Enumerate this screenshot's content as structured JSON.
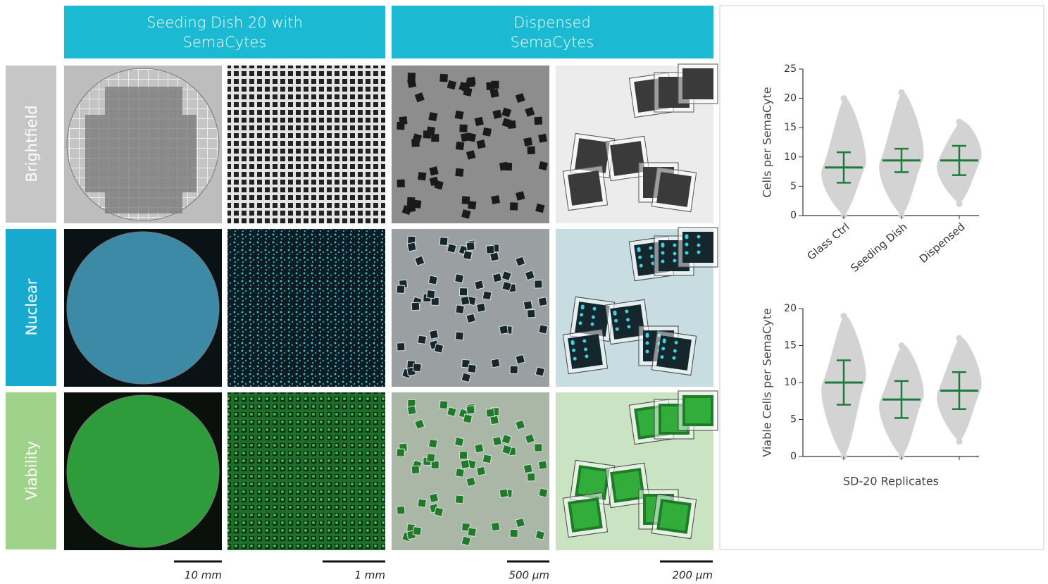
{
  "headers": [
    {
      "lines": [
        "Seeding Dish 20 with",
        "SemaCytes"
      ]
    },
    {
      "lines": [
        "Dispensed",
        "SemaCytes"
      ]
    }
  ],
  "rows": [
    "Brightfield",
    "Nuclear",
    "Viability"
  ],
  "scale_bars": [
    "10 mm",
    "1 mm",
    "500 µm",
    "200 µm"
  ],
  "chart_data": [
    {
      "type": "dot",
      "ylabel": "Cells per SemaCyte",
      "categories": [
        "Glass Ctrl",
        "Seeding Dish",
        "Dispensed"
      ],
      "values": [
        8.2,
        9.4,
        9.4
      ],
      "errors": [
        2.6,
        2.0,
        2.5
      ],
      "min": [
        0,
        0,
        2
      ],
      "max": [
        20,
        21,
        16
      ],
      "color": "#1e7b3c",
      "dot_color": "#d3d3d3",
      "ylim": [
        0,
        25
      ],
      "yticks": [
        0,
        5,
        10,
        15,
        20,
        25
      ]
    },
    {
      "type": "dot",
      "ylabel": "Viable Cells per SemaCyte",
      "xlabel": "SD-20 Replicates",
      "categories": [
        null,
        null,
        null
      ],
      "values": [
        10.0,
        7.7,
        8.9
      ],
      "errors": [
        3.0,
        2.5,
        2.5
      ],
      "min": [
        0,
        0,
        2
      ],
      "max": [
        19,
        15,
        16
      ],
      "color": "#1e7b3c",
      "dot_color": "#d3d3d3",
      "ylim": [
        0,
        20
      ],
      "yticks": [
        0,
        5,
        10,
        15,
        20
      ]
    }
  ]
}
